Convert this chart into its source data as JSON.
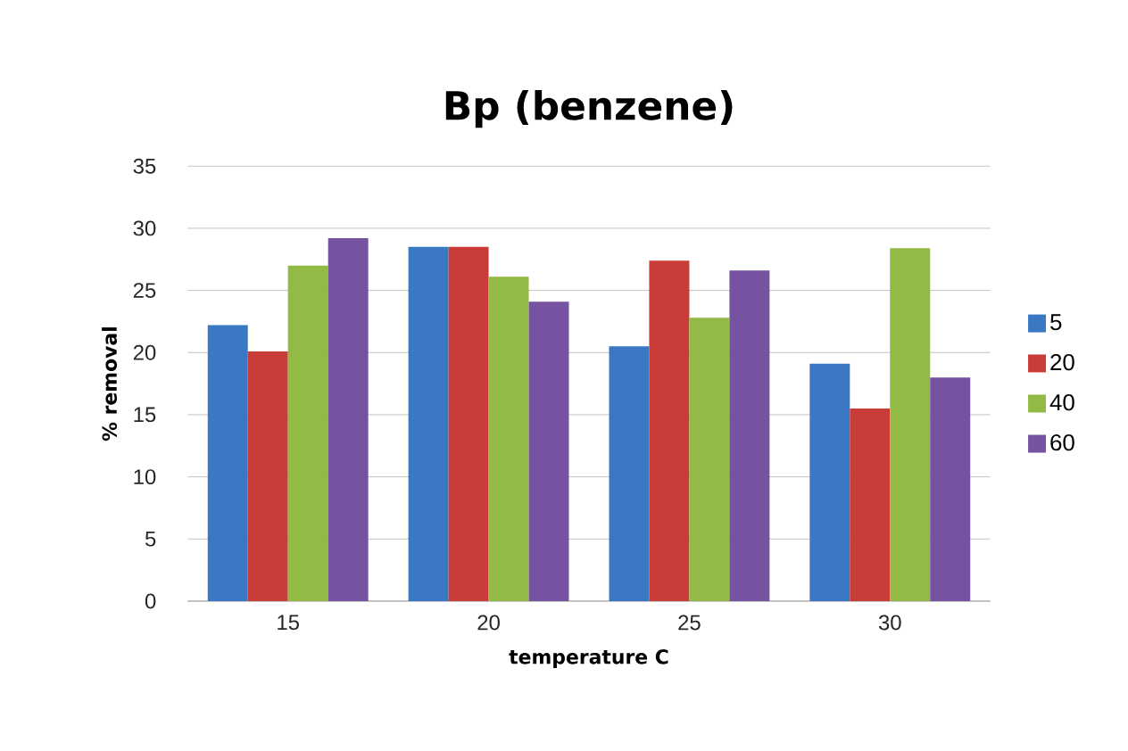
{
  "chart_data": {
    "type": "bar",
    "title": "Bp (benzene)",
    "xlabel": "temperature C",
    "ylabel": "% removal",
    "categories": [
      "15",
      "20",
      "25",
      "30"
    ],
    "series": [
      {
        "name": "5",
        "color": "#3a78c4",
        "values": [
          22.2,
          28.5,
          20.5,
          19.1
        ]
      },
      {
        "name": "20",
        "color": "#c93c38",
        "values": [
          20.1,
          28.5,
          27.4,
          15.5
        ]
      },
      {
        "name": "40",
        "color": "#93ba45",
        "values": [
          27.0,
          26.1,
          22.8,
          28.4
        ]
      },
      {
        "name": "60",
        "color": "#7553a0",
        "values": [
          29.2,
          24.1,
          26.6,
          18.0
        ]
      }
    ],
    "ylim": [
      0,
      35
    ],
    "yticks": [
      0,
      5,
      10,
      15,
      20,
      25,
      30,
      35
    ],
    "grid": "y",
    "legend": "right"
  }
}
